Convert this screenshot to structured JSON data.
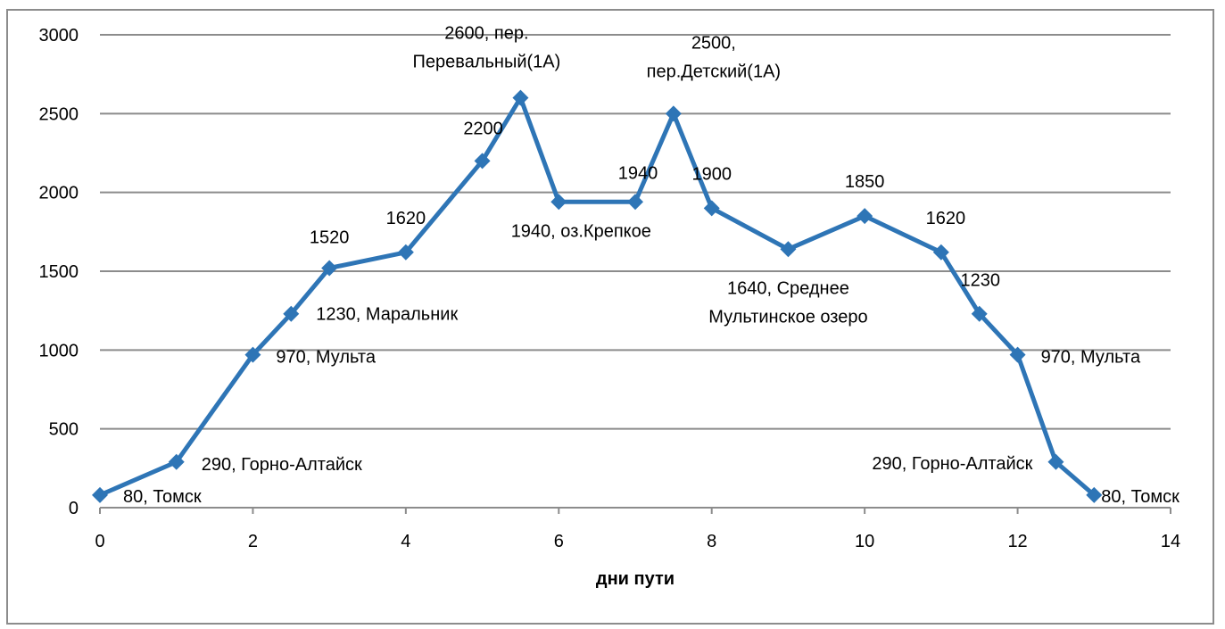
{
  "chart_data": {
    "type": "line",
    "title": "",
    "xlabel": "дни пути",
    "ylabel": "",
    "xlim": [
      0,
      14
    ],
    "ylim": [
      0,
      3000
    ],
    "x_ticks": [
      0,
      2,
      4,
      6,
      8,
      10,
      12,
      14
    ],
    "y_ticks": [
      0,
      500,
      1000,
      1500,
      2000,
      2500,
      3000
    ],
    "grid": "horizontal",
    "legend": "none",
    "series": [
      {
        "color": "#2e75b6",
        "marker": "diamond",
        "points": [
          {
            "x": 0,
            "y": 80,
            "label": "80, Томск"
          },
          {
            "x": 1,
            "y": 290,
            "label": "290, Горно-Алтайск"
          },
          {
            "x": 2,
            "y": 970,
            "label": "970, Мульта"
          },
          {
            "x": 2.5,
            "y": 1230,
            "label": "1230, Маральник"
          },
          {
            "x": 3,
            "y": 1520,
            "label": "1520"
          },
          {
            "x": 4,
            "y": 1620,
            "label": "1620"
          },
          {
            "x": 5,
            "y": 2200,
            "label": "2200"
          },
          {
            "x": 5.5,
            "y": 2600,
            "label": "2600, пер. Перевальный(1А)"
          },
          {
            "x": 6,
            "y": 1940,
            "label": "1940, оз.Крепкое"
          },
          {
            "x": 7,
            "y": 1940,
            "label": "1940"
          },
          {
            "x": 7.5,
            "y": 2500,
            "label": "2500, пер.Детский(1А)"
          },
          {
            "x": 8,
            "y": 1900,
            "label": "1900"
          },
          {
            "x": 9,
            "y": 1640,
            "label": "1640, Среднее Мультинское озеро"
          },
          {
            "x": 10,
            "y": 1850,
            "label": "1850"
          },
          {
            "x": 11,
            "y": 1620,
            "label": "1620"
          },
          {
            "x": 11.5,
            "y": 1230,
            "label": "1230"
          },
          {
            "x": 12,
            "y": 970,
            "label": "970, Мульта"
          },
          {
            "x": 12.5,
            "y": 290,
            "label": "290, Горно-Алтайск"
          },
          {
            "x": 13,
            "y": 80,
            "label": "80, Томск"
          }
        ]
      }
    ]
  }
}
